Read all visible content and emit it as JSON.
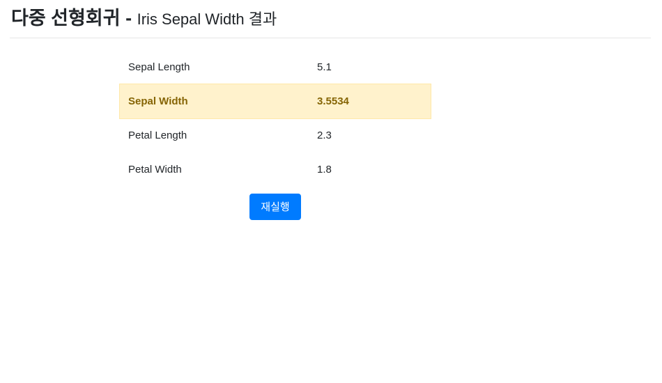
{
  "header": {
    "title": "다중 선형회귀",
    "separator": "-",
    "subtitle": "Iris Sepal Width 결과"
  },
  "results": [
    {
      "label": "Sepal Length",
      "value": "5.1",
      "highlighted": false
    },
    {
      "label": "Sepal Width",
      "value": "3.5534",
      "highlighted": true
    },
    {
      "label": "Petal Length",
      "value": "2.3",
      "highlighted": false
    },
    {
      "label": "Petal Width",
      "value": "1.8",
      "highlighted": false
    }
  ],
  "actions": {
    "rerun_label": "재실행"
  },
  "colors": {
    "highlight_bg": "#fff2cc",
    "highlight_text": "#856404",
    "button_bg": "#007bff"
  }
}
